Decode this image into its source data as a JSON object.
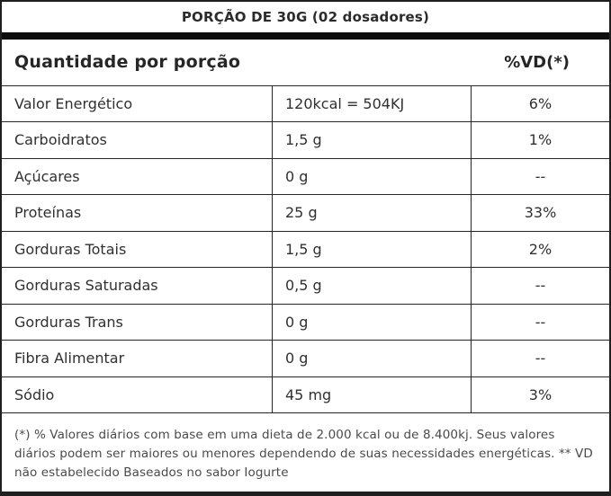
{
  "header": {
    "title": "PORÇÃO DE 30G (02 dosadores)"
  },
  "columns": {
    "quantity_label": "Quantidade por porção",
    "daily_value_label": "%VD(*)"
  },
  "table": {
    "rows": [
      {
        "label": "Valor Energético",
        "value": "120kcal = 504KJ",
        "vd": "6%"
      },
      {
        "label": "Carboidratos",
        "value": "1,5 g",
        "vd": "1%"
      },
      {
        "label": "Açúcares",
        "value": "0 g",
        "vd": "--"
      },
      {
        "label": "Proteínas",
        "value": "25 g",
        "vd": "33%"
      },
      {
        "label": "Gorduras Totais",
        "value": "1,5 g",
        "vd": "2%"
      },
      {
        "label": "Gorduras Saturadas",
        "value": "0,5 g",
        "vd": "--"
      },
      {
        "label": "Gorduras Trans",
        "value": "0 g",
        "vd": "--"
      },
      {
        "label": "Fibra Alimentar",
        "value": "0 g",
        "vd": "--"
      },
      {
        "label": "Sódio",
        "value": "45 mg",
        "vd": "3%"
      }
    ]
  },
  "footnote": {
    "text": "(*) % Valores diários com base em uma dieta de 2.000 kcal ou de 8.400kj. Seus valores diários podem ser maiores ou menores dependendo de suas necessidades energéticas. ** VD não estabelecido Baseados no sabor Iogurte"
  },
  "colors": {
    "background": "#ffffff",
    "border": "#1f1f1f",
    "thick_bar": "#0d0d0d",
    "text": "#2e2e2e",
    "footnote_text": "#4a4a4a"
  }
}
